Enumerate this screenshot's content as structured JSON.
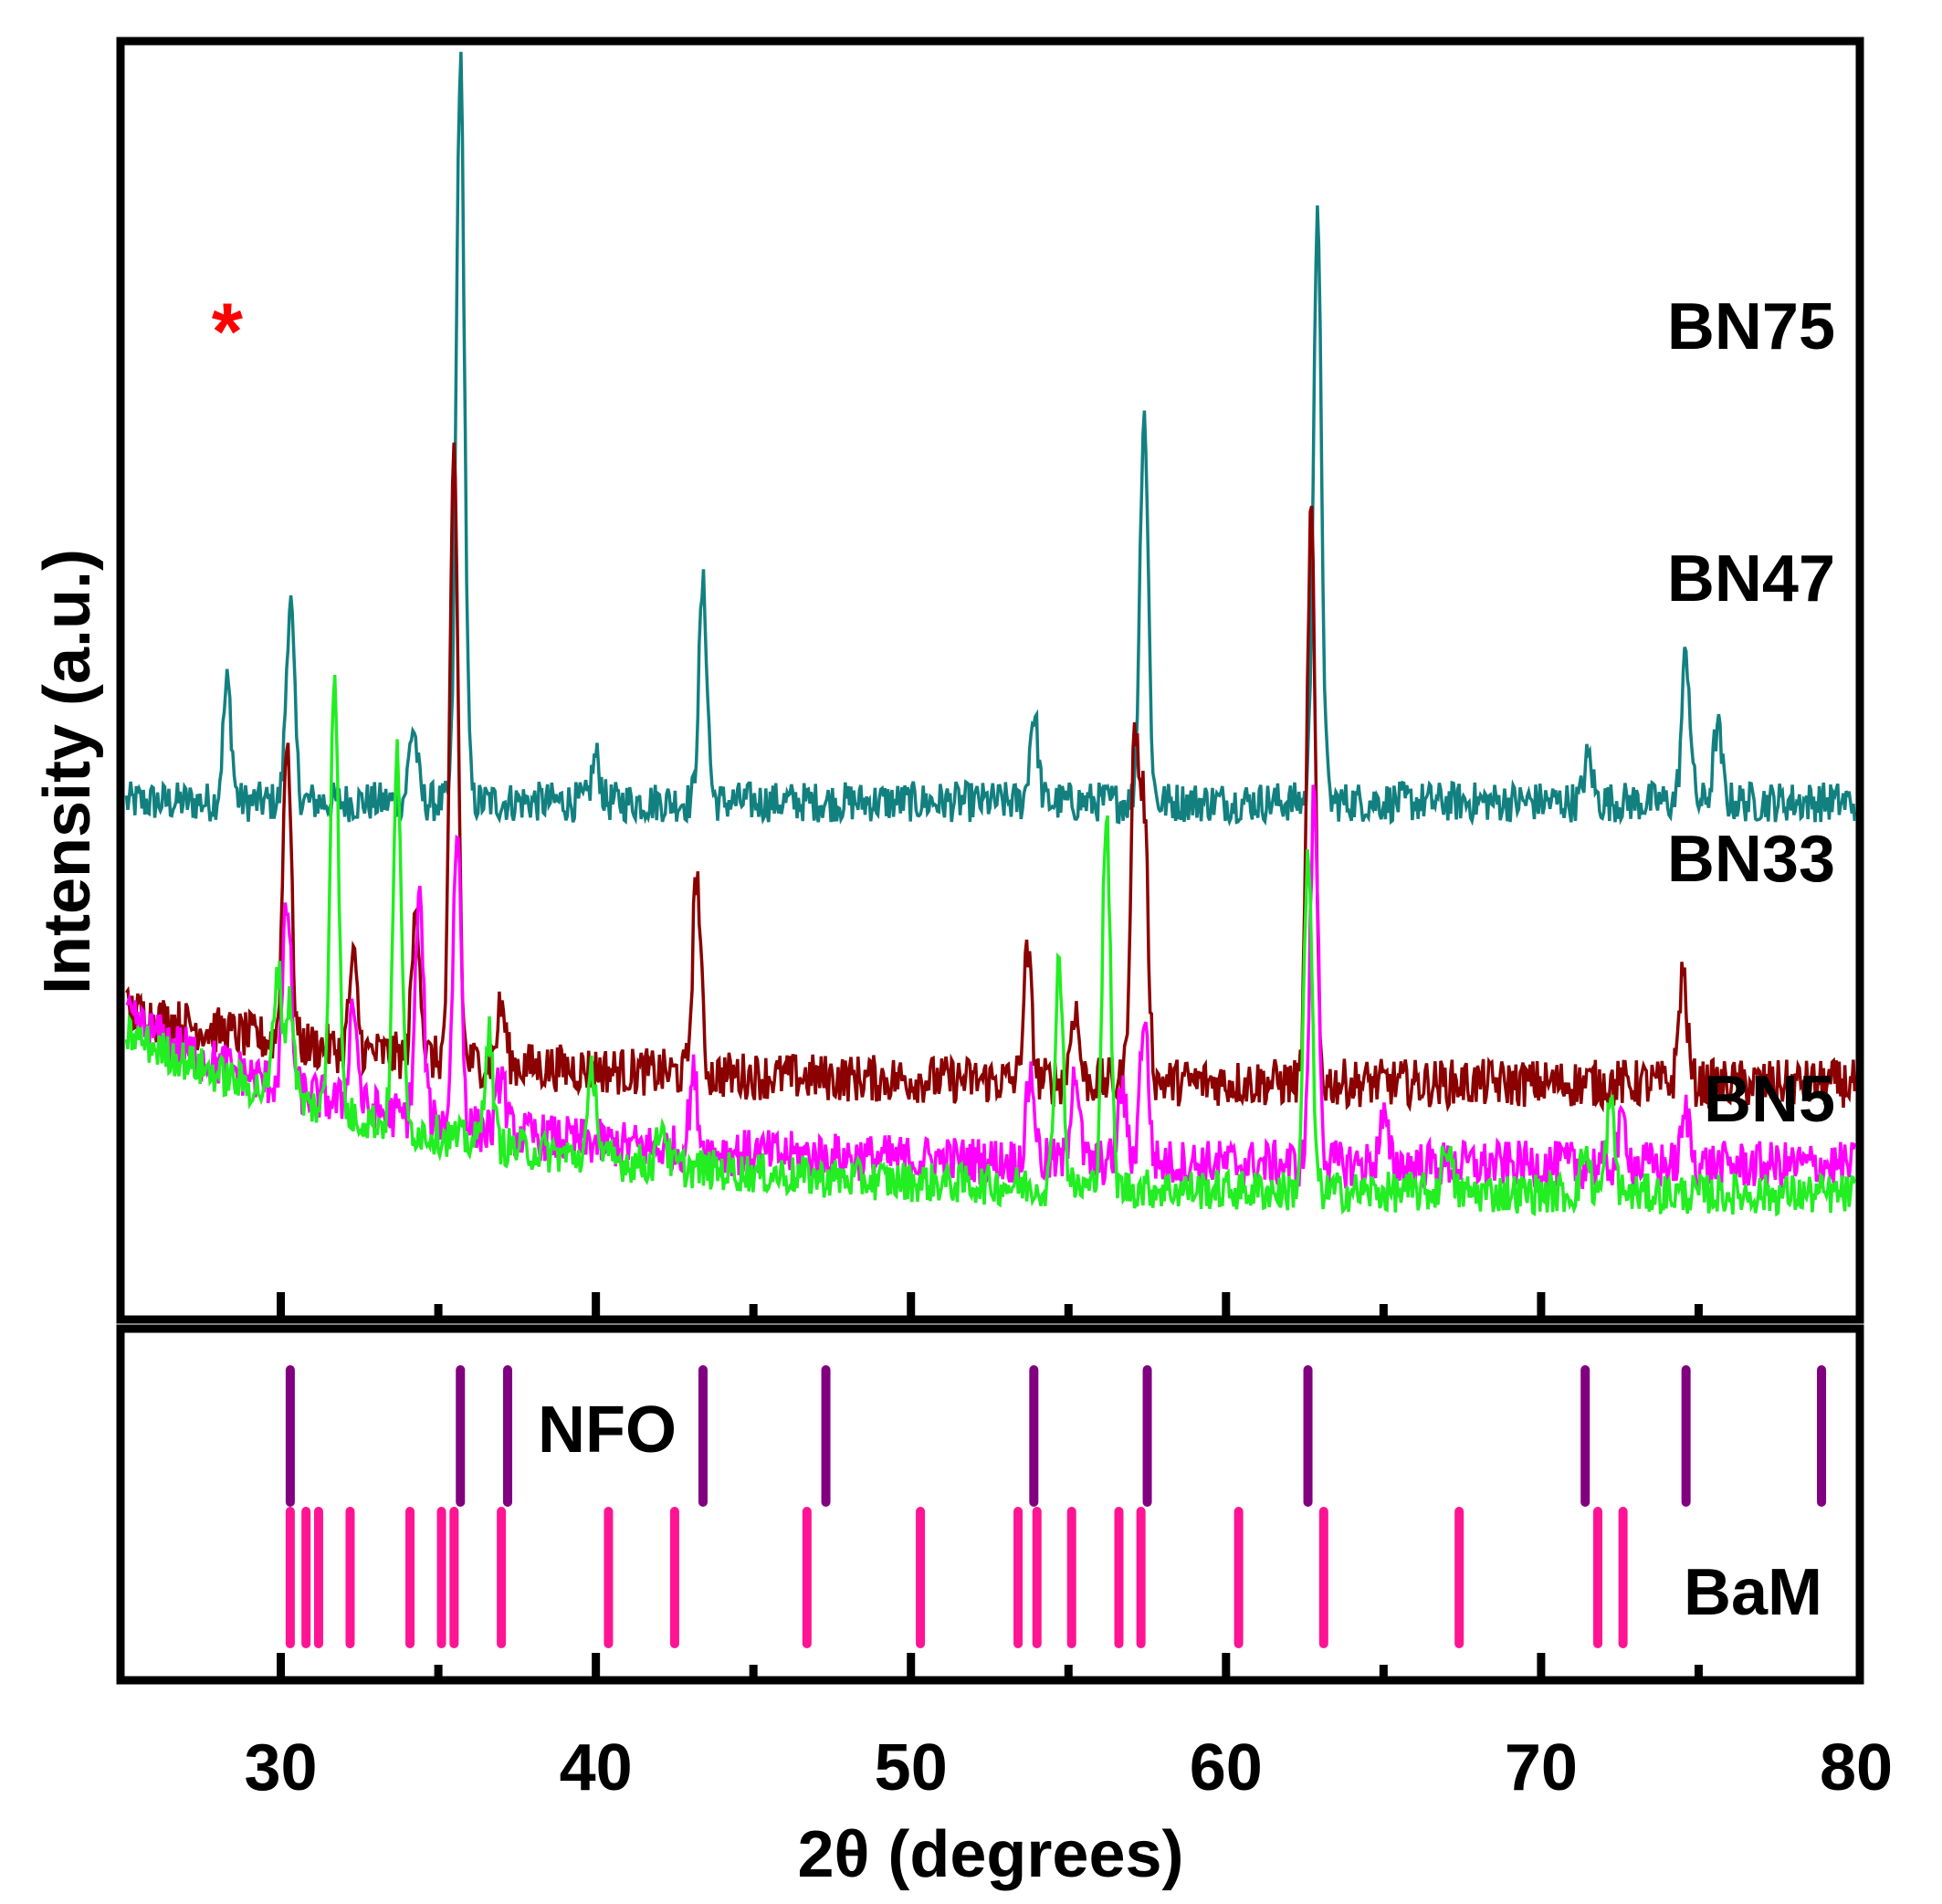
{
  "chart_data": {
    "type": "line",
    "xlabel": "2θ (degrees)",
    "ylabel": "Intensity (a.u.)",
    "xlim": [
      25,
      80
    ],
    "xticks": [
      30,
      40,
      50,
      60,
      70,
      80
    ],
    "minor_xticks": [
      35,
      45,
      55,
      65,
      75
    ],
    "marker_text": "*",
    "marker_2theta": 28.3,
    "series": [
      {
        "name": "BN75",
        "color": "#138080",
        "baseline": 0.63,
        "start_hump": 0.0,
        "hump_decay": 5,
        "noise": 0.055,
        "peaks": [
          [
            28.3,
            0.16
          ],
          [
            30.3,
            0.27
          ],
          [
            34.2,
            0.1
          ],
          [
            35.7,
            1.0
          ],
          [
            40.0,
            0.06
          ],
          [
            43.4,
            0.29
          ],
          [
            53.9,
            0.12
          ],
          [
            57.4,
            0.53
          ],
          [
            62.9,
            0.78
          ],
          [
            71.5,
            0.06
          ],
          [
            74.6,
            0.2
          ],
          [
            75.6,
            0.1
          ]
        ]
      },
      {
        "name": "BN47",
        "color": "#8b0000",
        "baseline": 0.25,
        "start_hump": 0.1,
        "hump_decay": 9,
        "noise": 0.065,
        "peaks": [
          [
            30.2,
            0.42
          ],
          [
            32.3,
            0.12
          ],
          [
            34.3,
            0.2
          ],
          [
            35.5,
            0.82
          ],
          [
            37.0,
            0.08
          ],
          [
            43.2,
            0.27
          ],
          [
            53.7,
            0.17
          ],
          [
            55.2,
            0.1
          ],
          [
            57.1,
            0.45
          ],
          [
            57.4,
            0.35
          ],
          [
            62.7,
            0.77
          ],
          [
            74.5,
            0.15
          ]
        ]
      },
      {
        "name": "BN33",
        "color": "#ff00ff",
        "baseline": 0.14,
        "start_hump": 0.2,
        "hump_decay": 8,
        "noise": 0.065,
        "peaks": [
          [
            30.2,
            0.25
          ],
          [
            32.3,
            0.14
          ],
          [
            34.4,
            0.3
          ],
          [
            35.6,
            0.4
          ],
          [
            37.0,
            0.08
          ],
          [
            43.1,
            0.1
          ],
          [
            53.8,
            0.12
          ],
          [
            55.2,
            0.13
          ],
          [
            56.7,
            0.1
          ],
          [
            57.4,
            0.2
          ],
          [
            62.8,
            0.5
          ],
          [
            65.0,
            0.06
          ],
          [
            72.6,
            0.06
          ],
          [
            74.6,
            0.07
          ]
        ]
      },
      {
        "name": "BN5",
        "color": "#22ee22",
        "baseline": 0.1,
        "start_hump": 0.22,
        "hump_decay": 10,
        "noise": 0.055,
        "peaks": [
          [
            29.9,
            0.17
          ],
          [
            30.3,
            0.13
          ],
          [
            31.7,
            0.6
          ],
          [
            33.7,
            0.5
          ],
          [
            36.6,
            0.15
          ],
          [
            39.9,
            0.12
          ],
          [
            42.1,
            0.06
          ],
          [
            54.7,
            0.31
          ],
          [
            56.2,
            0.5
          ],
          [
            62.6,
            0.45
          ],
          [
            67.0,
            0.07
          ],
          [
            71.4,
            0.06
          ],
          [
            72.2,
            0.12
          ]
        ]
      }
    ],
    "references": [
      {
        "name": "NFO",
        "color": "#800080",
        "positions": [
          30.3,
          35.7,
          37.2,
          43.4,
          47.3,
          53.9,
          57.5,
          62.6,
          71.4,
          74.6,
          78.9
        ]
      },
      {
        "name": "BaM",
        "color": "#ff1493",
        "positions": [
          30.3,
          30.8,
          31.2,
          32.2,
          34.1,
          35.1,
          35.5,
          37.0,
          40.4,
          42.5,
          46.7,
          50.3,
          53.4,
          54.0,
          55.1,
          56.6,
          57.3,
          60.4,
          63.1,
          67.4,
          71.8,
          72.6
        ]
      }
    ]
  }
}
